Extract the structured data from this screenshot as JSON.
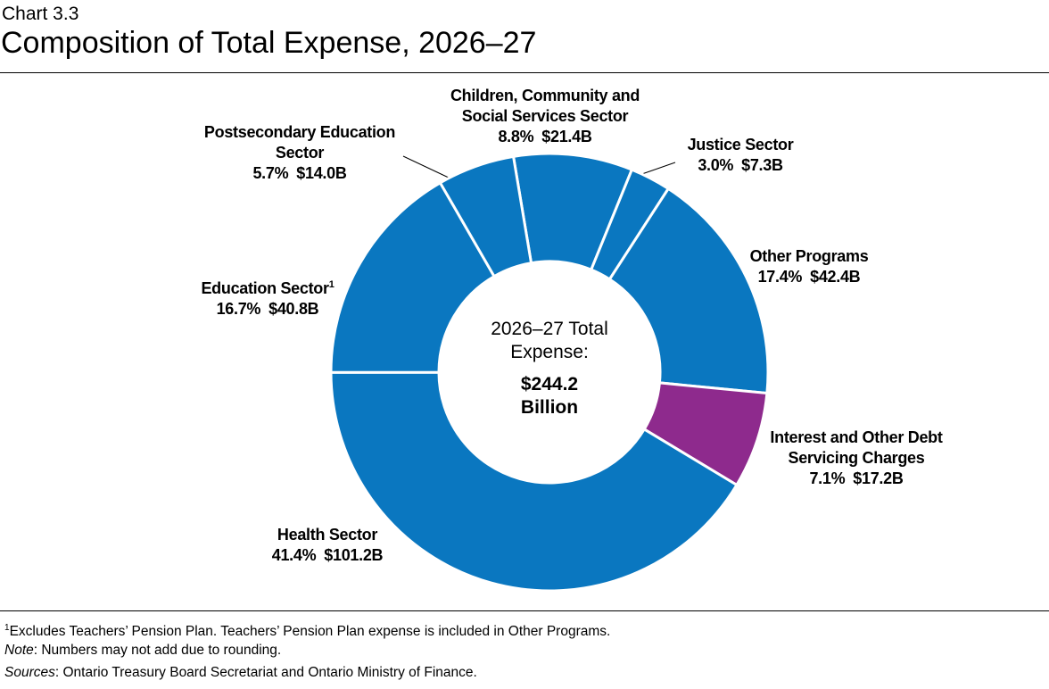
{
  "chart_data": {
    "type": "pie",
    "chart_number": "Chart 3.3",
    "title": "Composition of Total Expense, 2026–27",
    "categories": [
      "Children, Community and Social Services Sector",
      "Justice Sector",
      "Other Programs",
      "Interest and Other Debt Servicing Charges",
      "Health Sector",
      "Education Sector",
      "Postsecondary Education Sector"
    ],
    "category_superscripts": [
      null,
      null,
      null,
      null,
      null,
      "1",
      null
    ],
    "values": [
      8.8,
      3.0,
      17.4,
      7.1,
      41.4,
      16.7,
      5.7
    ],
    "value_labels": [
      "8.8%",
      "3.0%",
      "17.4%",
      "7.1%",
      "41.4%",
      "16.7%",
      "5.7%"
    ],
    "amounts": [
      21.4,
      7.3,
      42.4,
      17.2,
      101.2,
      40.8,
      14.0
    ],
    "amount_labels": [
      "$21.4B",
      "$7.3B",
      "$42.4B",
      "$17.2B",
      "$101.2B",
      "$40.8B",
      "$14.0B"
    ],
    "colors": [
      "#0a77c0",
      "#0a77c0",
      "#0a77c0",
      "#8e2a8d",
      "#0a77c0",
      "#0a77c0",
      "#0a77c0"
    ],
    "donut": true,
    "center_label": "2026–27 Total Expense:",
    "total": 244.2,
    "total_label": "$244.2 Billion",
    "footnote_marker": "1",
    "footnote": "Excludes Teachers’ Pension Plan. Teachers’ Pension Plan expense is included in Other Programs.",
    "note_label": "Note",
    "note": ": Numbers may not add due to rounding.",
    "sources_label": "Sources",
    "sources": ": Ontario Treasury Board Secretariat and Ontario Ministry of Finance."
  }
}
